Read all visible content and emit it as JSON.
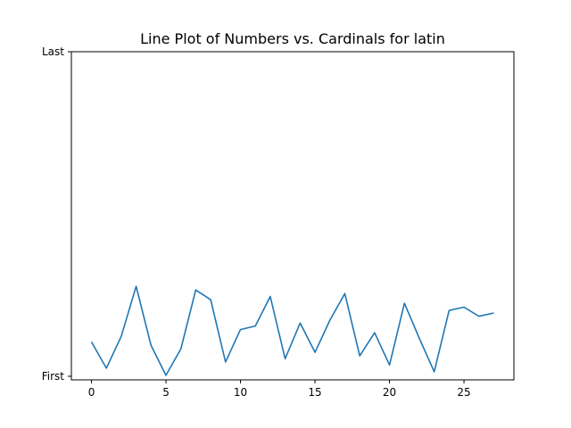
{
  "chart_data": {
    "type": "line",
    "title": "Line Plot of Numbers vs. Cardinals for latin",
    "xlabel": "",
    "ylabel": "",
    "xlim": [
      -1.35,
      28.35
    ],
    "ylim": [
      0,
      1
    ],
    "x_ticks": [
      0,
      5,
      10,
      15,
      20,
      25
    ],
    "y_tick_labels": [
      {
        "value": 0,
        "label": "First"
      },
      {
        "value": 1,
        "label": "Last"
      }
    ],
    "grid": false,
    "line_color": "#1f77b4",
    "x": [
      0,
      1,
      2,
      3,
      4,
      5,
      6,
      7,
      8,
      9,
      10,
      11,
      12,
      13,
      14,
      15,
      16,
      17,
      18,
      19,
      20,
      21,
      22,
      23,
      24,
      25,
      26,
      27
    ],
    "y": [
      0.106,
      0.025,
      0.123,
      0.277,
      0.095,
      0.003,
      0.084,
      0.266,
      0.236,
      0.044,
      0.144,
      0.155,
      0.246,
      0.054,
      0.164,
      0.074,
      0.173,
      0.255,
      0.063,
      0.134,
      0.035,
      0.225,
      0.117,
      0.014,
      0.203,
      0.213,
      0.185,
      0.195
    ]
  }
}
